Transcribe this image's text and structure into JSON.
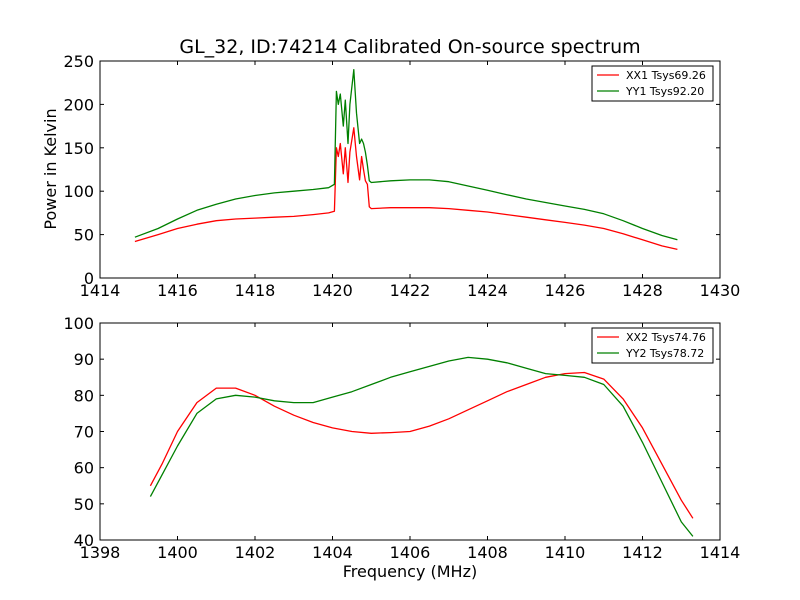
{
  "chart_data": [
    {
      "type": "line",
      "title": "GL_32, ID:74214 Calibrated On-source spectrum",
      "xlabel": "",
      "ylabel": "Power in Kelvin",
      "xlim": [
        1414,
        1430
      ],
      "ylim": [
        0,
        250
      ],
      "xticks": [
        "1414",
        "1416",
        "1418",
        "1420",
        "1422",
        "1424",
        "1426",
        "1428",
        "1430"
      ],
      "yticks": [
        "0",
        "50",
        "100",
        "150",
        "200",
        "250"
      ],
      "grid": false,
      "legend_position": "top-right",
      "series": [
        {
          "name": "XX1 Tsys69.26",
          "color": "#ff0000",
          "points": [
            [
              1414.9,
              42
            ],
            [
              1415.5,
              50
            ],
            [
              1416.0,
              57
            ],
            [
              1416.5,
              62
            ],
            [
              1417.0,
              66
            ],
            [
              1417.5,
              68
            ],
            [
              1418.0,
              69
            ],
            [
              1418.5,
              70
            ],
            [
              1419.0,
              71
            ],
            [
              1419.5,
              73
            ],
            [
              1419.9,
              75
            ],
            [
              1420.05,
              77
            ],
            [
              1420.1,
              150
            ],
            [
              1420.15,
              140
            ],
            [
              1420.2,
              155
            ],
            [
              1420.28,
              120
            ],
            [
              1420.33,
              150
            ],
            [
              1420.4,
              110
            ],
            [
              1420.45,
              145
            ],
            [
              1420.55,
              173
            ],
            [
              1420.62,
              140
            ],
            [
              1420.7,
              113
            ],
            [
              1420.75,
              140
            ],
            [
              1420.8,
              125
            ],
            [
              1420.85,
              112
            ],
            [
              1420.9,
              108
            ],
            [
              1420.95,
              82
            ],
            [
              1421.0,
              80
            ],
            [
              1421.5,
              81
            ],
            [
              1422.0,
              81
            ],
            [
              1422.5,
              81
            ],
            [
              1423.0,
              80
            ],
            [
              1423.5,
              78
            ],
            [
              1424.0,
              76
            ],
            [
              1424.5,
              73
            ],
            [
              1425.0,
              70
            ],
            [
              1425.5,
              67
            ],
            [
              1426.0,
              64
            ],
            [
              1426.5,
              61
            ],
            [
              1427.0,
              57
            ],
            [
              1427.5,
              51
            ],
            [
              1428.0,
              44
            ],
            [
              1428.5,
              37
            ],
            [
              1428.9,
              33
            ]
          ]
        },
        {
          "name": "YY1 Tsys92.20",
          "color": "#008000",
          "points": [
            [
              1414.9,
              47
            ],
            [
              1415.5,
              57
            ],
            [
              1416.0,
              68
            ],
            [
              1416.5,
              78
            ],
            [
              1417.0,
              85
            ],
            [
              1417.5,
              91
            ],
            [
              1418.0,
              95
            ],
            [
              1418.5,
              98
            ],
            [
              1419.0,
              100
            ],
            [
              1419.5,
              102
            ],
            [
              1419.9,
              104
            ],
            [
              1420.05,
              108
            ],
            [
              1420.1,
              215
            ],
            [
              1420.15,
              200
            ],
            [
              1420.2,
              212
            ],
            [
              1420.28,
              175
            ],
            [
              1420.33,
              205
            ],
            [
              1420.4,
              155
            ],
            [
              1420.45,
              200
            ],
            [
              1420.55,
              240
            ],
            [
              1420.62,
              190
            ],
            [
              1420.7,
              155
            ],
            [
              1420.75,
              160
            ],
            [
              1420.8,
              155
            ],
            [
              1420.85,
              145
            ],
            [
              1420.9,
              130
            ],
            [
              1420.95,
              112
            ],
            [
              1421.0,
              110
            ],
            [
              1421.5,
              112
            ],
            [
              1422.0,
              113
            ],
            [
              1422.5,
              113
            ],
            [
              1423.0,
              111
            ],
            [
              1423.5,
              106
            ],
            [
              1424.0,
              101
            ],
            [
              1424.5,
              96
            ],
            [
              1425.0,
              91
            ],
            [
              1425.5,
              87
            ],
            [
              1426.0,
              83
            ],
            [
              1426.5,
              79
            ],
            [
              1427.0,
              74
            ],
            [
              1427.5,
              66
            ],
            [
              1428.0,
              57
            ],
            [
              1428.5,
              49
            ],
            [
              1428.9,
              44
            ]
          ]
        }
      ]
    },
    {
      "type": "line",
      "title": "",
      "xlabel": "Frequency (MHz)",
      "ylabel": "",
      "xlim": [
        1398,
        1414
      ],
      "ylim": [
        40,
        100
      ],
      "xticks": [
        "1398",
        "1400",
        "1402",
        "1404",
        "1406",
        "1408",
        "1410",
        "1412",
        "1414"
      ],
      "yticks": [
        "40",
        "50",
        "60",
        "70",
        "80",
        "90",
        "100"
      ],
      "grid": false,
      "legend_position": "top-right",
      "series": [
        {
          "name": "XX2 Tsys74.76",
          "color": "#ff0000",
          "points": [
            [
              1399.3,
              55
            ],
            [
              1399.6,
              61
            ],
            [
              1400.0,
              70
            ],
            [
              1400.5,
              78
            ],
            [
              1401.0,
              82
            ],
            [
              1401.5,
              82
            ],
            [
              1402.0,
              80
            ],
            [
              1402.5,
              77
            ],
            [
              1403.0,
              74.5
            ],
            [
              1403.5,
              72.5
            ],
            [
              1404.0,
              71
            ],
            [
              1404.5,
              70
            ],
            [
              1405.0,
              69.5
            ],
            [
              1405.5,
              69.7
            ],
            [
              1406.0,
              70
            ],
            [
              1406.5,
              71.5
            ],
            [
              1407.0,
              73.5
            ],
            [
              1407.5,
              76
            ],
            [
              1408.0,
              78.5
            ],
            [
              1408.5,
              81
            ],
            [
              1409.0,
              83
            ],
            [
              1409.5,
              85
            ],
            [
              1410.0,
              86
            ],
            [
              1410.5,
              86.3
            ],
            [
              1411.0,
              84.5
            ],
            [
              1411.5,
              79
            ],
            [
              1412.0,
              71
            ],
            [
              1412.5,
              61
            ],
            [
              1413.0,
              51
            ],
            [
              1413.3,
              46
            ]
          ]
        },
        {
          "name": "YY2 Tsys78.72",
          "color": "#008000",
          "points": [
            [
              1399.3,
              52
            ],
            [
              1399.6,
              58
            ],
            [
              1400.0,
              66
            ],
            [
              1400.5,
              75
            ],
            [
              1401.0,
              79
            ],
            [
              1401.5,
              80
            ],
            [
              1402.0,
              79.5
            ],
            [
              1402.5,
              78.5
            ],
            [
              1403.0,
              78
            ],
            [
              1403.5,
              78
            ],
            [
              1404.0,
              79.5
            ],
            [
              1404.5,
              81
            ],
            [
              1405.0,
              83
            ],
            [
              1405.5,
              85
            ],
            [
              1406.0,
              86.5
            ],
            [
              1406.5,
              88
            ],
            [
              1407.0,
              89.5
            ],
            [
              1407.5,
              90.5
            ],
            [
              1408.0,
              90
            ],
            [
              1408.5,
              89
            ],
            [
              1409.0,
              87.5
            ],
            [
              1409.5,
              86
            ],
            [
              1410.0,
              85.5
            ],
            [
              1410.5,
              85
            ],
            [
              1411.0,
              83
            ],
            [
              1411.5,
              77
            ],
            [
              1412.0,
              67
            ],
            [
              1412.5,
              56
            ],
            [
              1413.0,
              45
            ],
            [
              1413.3,
              41
            ]
          ]
        }
      ]
    }
  ]
}
